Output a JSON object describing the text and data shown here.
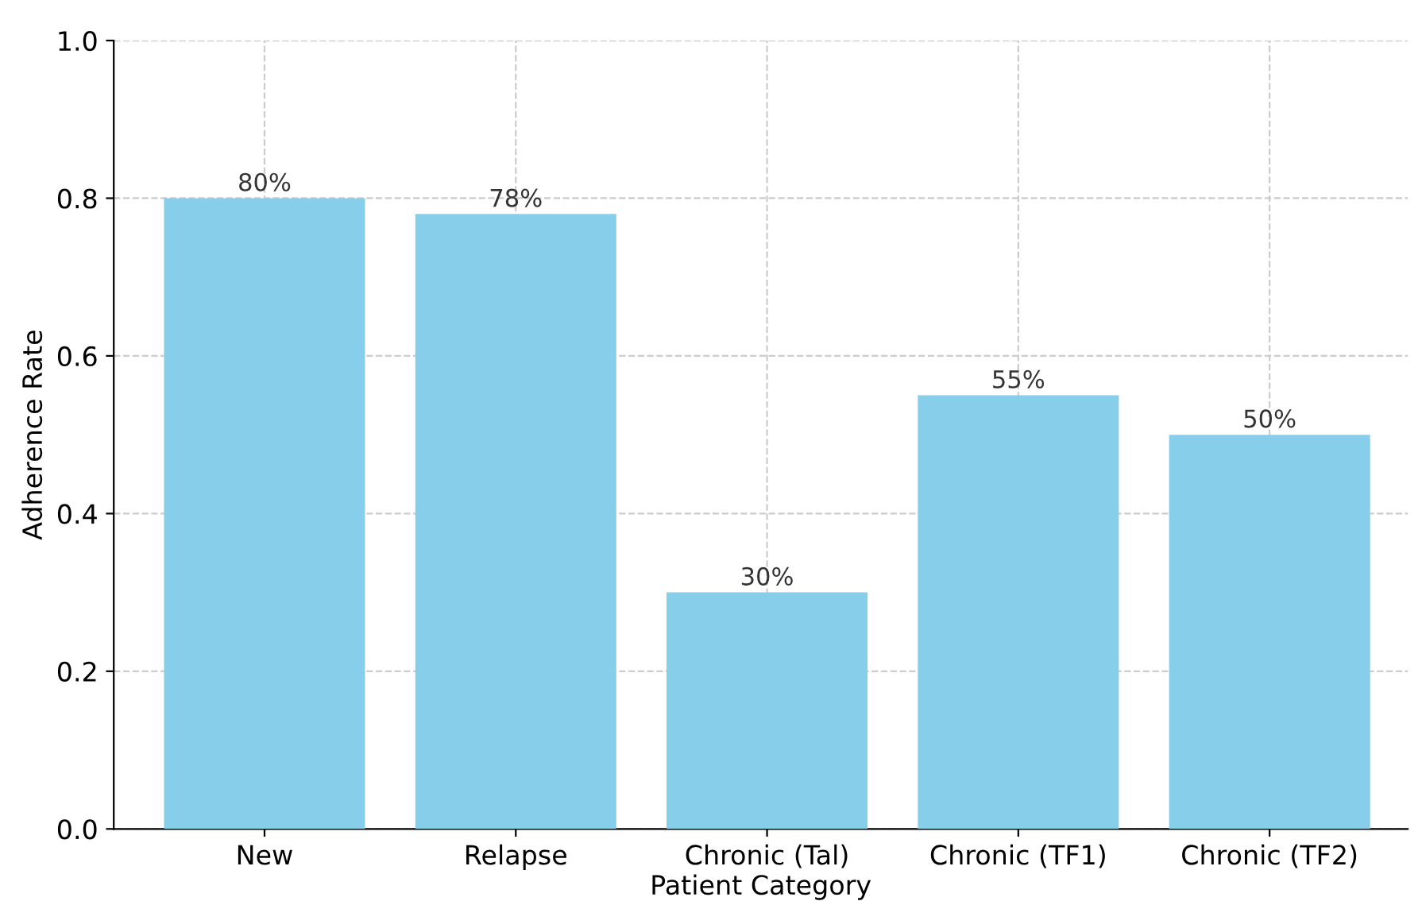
{
  "chart_data": {
    "type": "bar",
    "xlabel": "Patient Category",
    "ylabel": "Adherence Rate",
    "categories": [
      "New",
      "Relapse",
      "Chronic (Tal)",
      "Chronic (TF1)",
      "Chronic (TF2)"
    ],
    "values": [
      0.8,
      0.78,
      0.3,
      0.55,
      0.5
    ],
    "value_labels": [
      "80%",
      "78%",
      "30%",
      "55%",
      "50%"
    ],
    "color": "#87ceeb",
    "ylim": [
      0,
      1.0
    ],
    "yticks": [
      {
        "value": 0,
        "label": "0.0"
      },
      0.2,
      0.4,
      0.6,
      0.8,
      {
        "value": 1.0,
        "label": "1.0"
      }
    ],
    "grid": true
  }
}
